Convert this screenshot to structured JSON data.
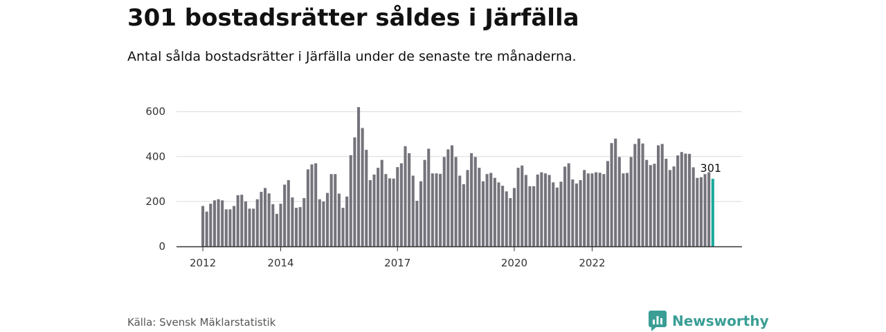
{
  "header": {
    "title": "301 bostadsrätter såldes i Järfälla",
    "subtitle": "Antal sålda bostadsrätter i Järfälla under de senaste tre månaderna."
  },
  "footer": {
    "source": "Källa: Svensk Mäklarstatistik",
    "brand": "Newsworthy",
    "brand_color": "#3a9e95"
  },
  "colors": {
    "bar": "#75747c",
    "highlight": "#1ba99c",
    "grid": "#d9d9d9",
    "axis": "#333333"
  },
  "chart_data": {
    "type": "bar",
    "title": "",
    "xlabel": "",
    "ylabel": "",
    "start": "2012-01",
    "ylim": [
      0,
      640
    ],
    "y_ticks": [
      0,
      200,
      400,
      600
    ],
    "x_ticks": [
      {
        "label": "2012",
        "index": 0
      },
      {
        "label": "2014",
        "index": 20
      },
      {
        "label": "2017",
        "index": 50
      },
      {
        "label": "2020",
        "index": 80
      },
      {
        "label": "2022",
        "index": 100
      }
    ],
    "grid": true,
    "values": [
      180,
      155,
      190,
      205,
      210,
      205,
      165,
      165,
      180,
      228,
      230,
      200,
      168,
      168,
      210,
      243,
      260,
      236,
      188,
      145,
      190,
      275,
      295,
      218,
      172,
      175,
      215,
      343,
      365,
      370,
      210,
      200,
      238,
      322,
      322,
      235,
      172,
      222,
      406,
      485,
      620,
      527,
      430,
      295,
      320,
      350,
      385,
      322,
      303,
      302,
      353,
      370,
      446,
      415,
      315,
      203,
      290,
      385,
      435,
      325,
      325,
      323,
      398,
      432,
      450,
      398,
      315,
      277,
      340,
      415,
      398,
      350,
      290,
      322,
      327,
      305,
      285,
      270,
      245,
      215,
      260,
      350,
      360,
      318,
      268,
      268,
      320,
      330,
      325,
      318,
      285,
      262,
      288,
      355,
      370,
      298,
      280,
      295,
      340,
      325,
      325,
      330,
      328,
      322,
      380,
      460,
      480,
      398,
      325,
      327,
      398,
      456,
      480,
      458,
      385,
      362,
      368,
      450,
      456,
      390,
      340,
      356,
      405,
      420,
      413,
      412,
      352,
      305,
      308,
      322,
      330,
      301
    ],
    "highlight": {
      "index": 131,
      "label": "301"
    }
  }
}
